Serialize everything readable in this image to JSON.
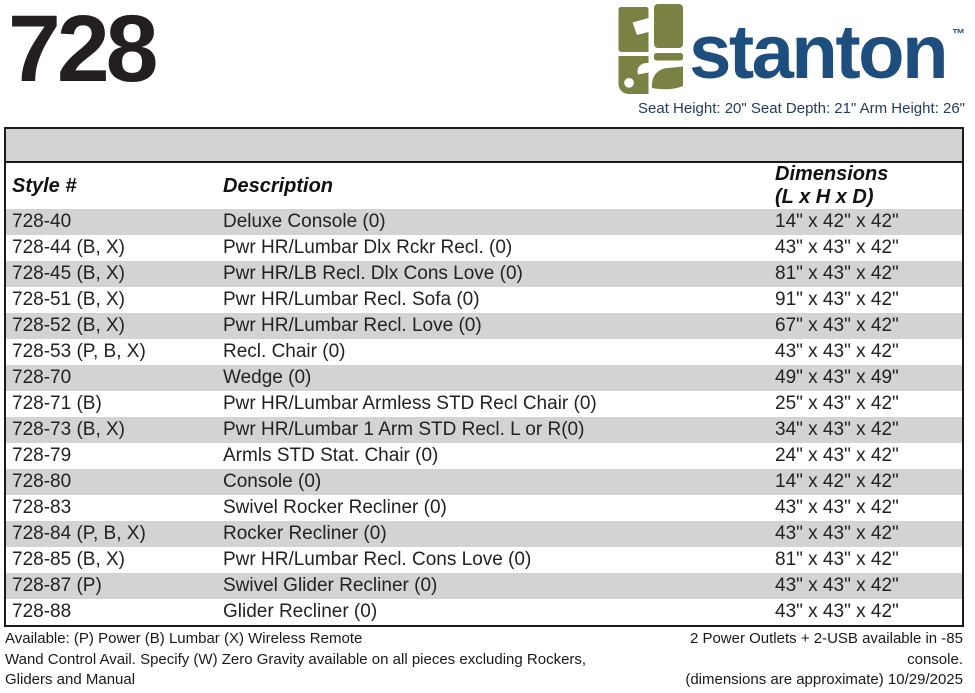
{
  "header": {
    "model": "728",
    "brand": "stanton",
    "trademark": "™",
    "seat_specs": "Seat Height: 20\" Seat Depth: 21\" Arm Height: 26\""
  },
  "colors": {
    "brand_blue": "#1d4e7d",
    "logo_olive": "#7b8043",
    "row_stripe": "#d3d3d3",
    "spec_text": "#243c5a",
    "border_black": "#1a1a1a"
  },
  "table": {
    "columns": {
      "style": "Style #",
      "description": "Description",
      "dimensions_line1": "Dimensions",
      "dimensions_line2": "(L x H x D)"
    },
    "rows": [
      {
        "style": "728-40",
        "description": "Deluxe Console (0)",
        "dimensions": "14\" x 42\" x 42\""
      },
      {
        "style": "728-44 (B, X)",
        "description": "Pwr HR/Lumbar Dlx Rckr Recl. (0)",
        "dimensions": "43\" x 43\" x 42\""
      },
      {
        "style": "728-45 (B, X)",
        "description": "Pwr HR/LB Recl. Dlx Cons Love (0)",
        "dimensions": "81\" x 43\" x 42\""
      },
      {
        "style": "728-51 (B, X)",
        "description": "Pwr HR/Lumbar Recl. Sofa (0)",
        "dimensions": "91\" x 43\" x 42\""
      },
      {
        "style": "728-52 (B, X)",
        "description": "Pwr HR/Lumbar Recl. Love (0)",
        "dimensions": "67\" x 43\" x 42\""
      },
      {
        "style": "728-53 (P, B, X)",
        "description": "Recl. Chair (0)",
        "dimensions": "43\" x 43\" x 42\""
      },
      {
        "style": "728-70",
        "description": "Wedge (0)",
        "dimensions": "49\" x 43\" x 49\""
      },
      {
        "style": "728-71 (B)",
        "description": "Pwr HR/Lumbar Armless STD Recl Chair (0)",
        "dimensions": "25\" x 43\" x 42\""
      },
      {
        "style": "728-73 (B, X)",
        "description": "Pwr HR/Lumbar 1 Arm STD Recl. L or R(0)",
        "dimensions": "34\" x 43\" x 42\""
      },
      {
        "style": "728-79",
        "description": "Armls STD Stat. Chair (0)",
        "dimensions": "24\" x 43\" x 42\""
      },
      {
        "style": "728-80",
        "description": "Console (0)",
        "dimensions": "14\" x 42\" x 42\""
      },
      {
        "style": "728-83",
        "description": "Swivel Rocker Recliner (0)",
        "dimensions": "43\" x 43\" x 42\""
      },
      {
        "style": "728-84 (P, B, X)",
        "description": "Rocker Recliner (0)",
        "dimensions": "43\" x 43\" x 42\""
      },
      {
        "style": "728-85 (B, X)",
        "description": "Pwr HR/Lumbar Recl. Cons Love (0)",
        "dimensions": "81\" x 43\" x 42\""
      },
      {
        "style": "728-87 (P)",
        "description": "Swivel Glider Recliner (0)",
        "dimensions": "43\" x 43\" x 42\""
      },
      {
        "style": "728-88",
        "description": "Glider Recliner (0)",
        "dimensions": "43\" x 43\" x 42\""
      }
    ]
  },
  "footer": {
    "left_lines": [
      "Available: (P) Power (B) Lumbar (X) Wireless Remote",
      "Wand Control Avail. Specify (W) Zero Gravity available on all pieces excluding Rockers,",
      "Gliders and Manual"
    ],
    "right_lines": [
      "2 Power Outlets + 2-USB available in -85",
      "console.",
      "(dimensions are approximate) 10/29/2025"
    ]
  }
}
